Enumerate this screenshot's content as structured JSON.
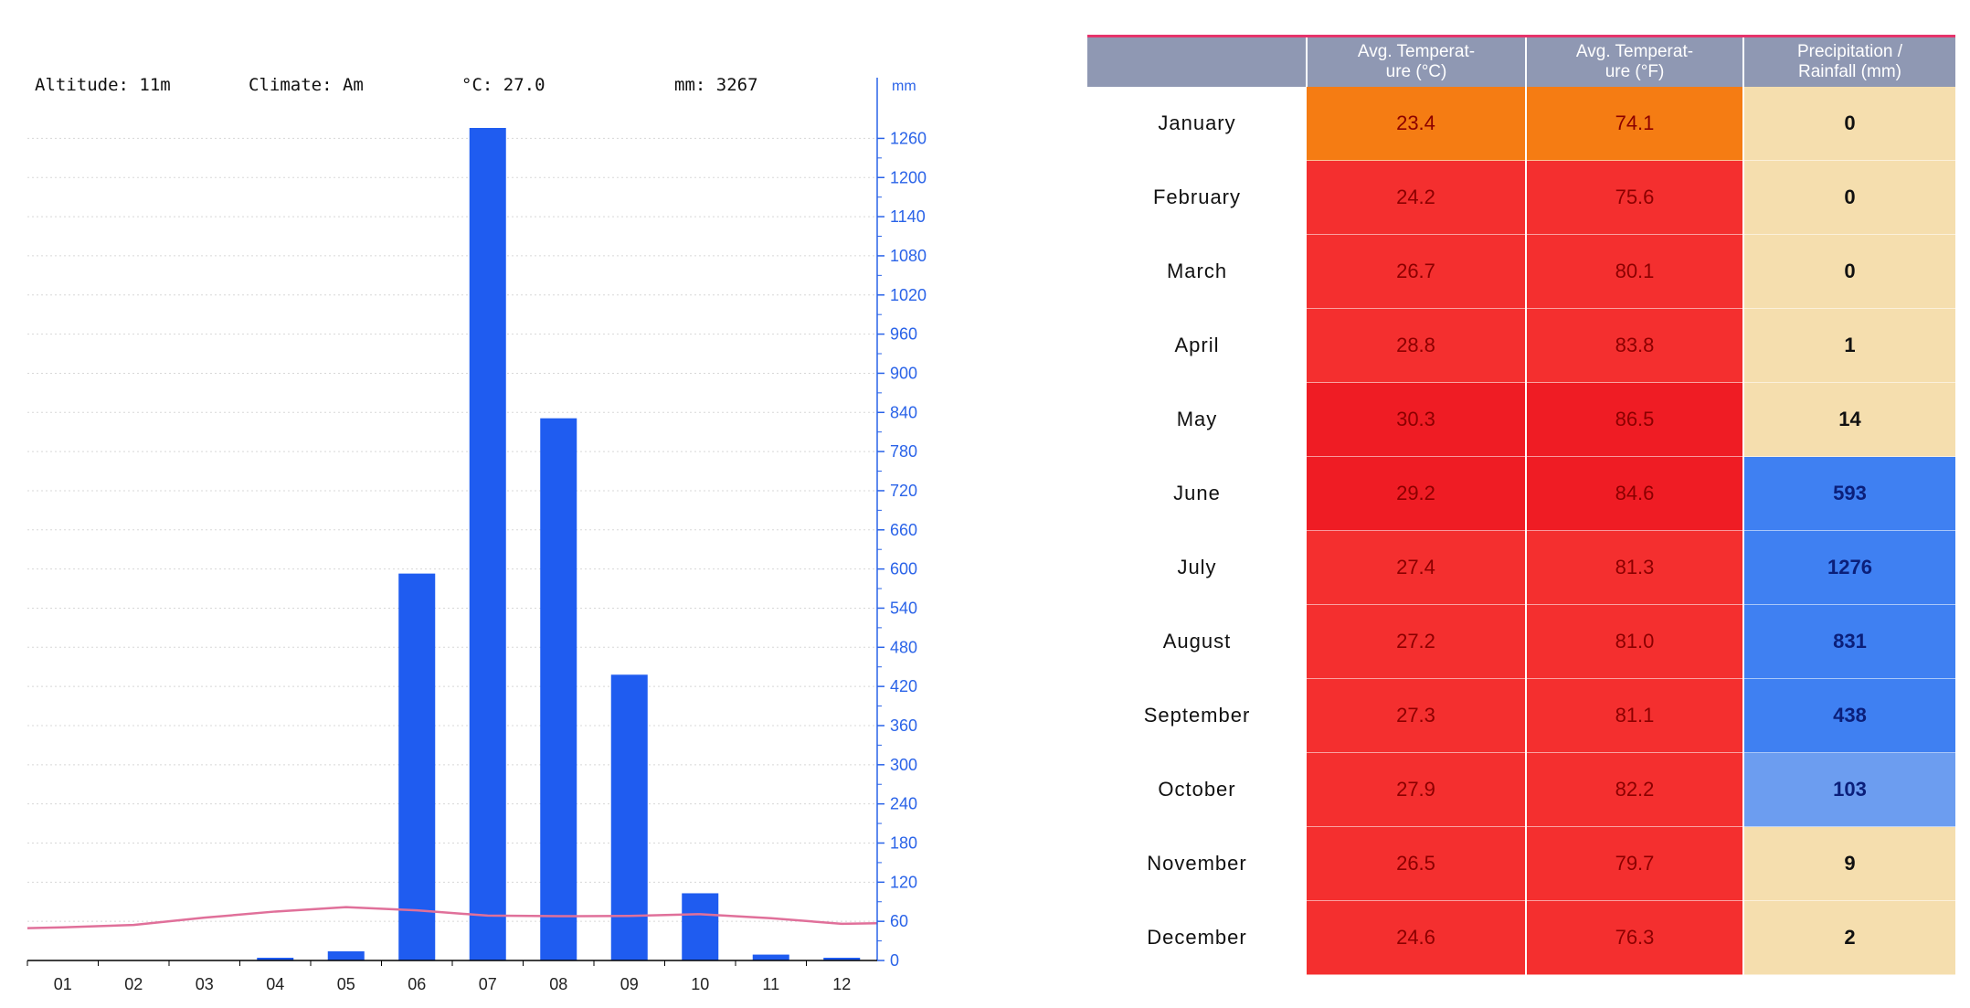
{
  "chart_data": [
    {
      "type": "bar",
      "header": {
        "altitude": "Altitude: 11m",
        "climate": "Climate: Am",
        "temp": "°C: 27.0",
        "precip": "mm: 3267"
      },
      "right_axis_unit": "mm",
      "categories": [
        "01",
        "02",
        "03",
        "04",
        "05",
        "06",
        "07",
        "08",
        "09",
        "10",
        "11",
        "12"
      ],
      "values": [
        0,
        0,
        0,
        1,
        14,
        593,
        1276,
        831,
        438,
        103,
        9,
        2
      ],
      "ylim": [
        0,
        1290
      ],
      "yticks": [
        0,
        60,
        120,
        180,
        240,
        300,
        360,
        420,
        480,
        540,
        600,
        660,
        720,
        780,
        840,
        900,
        960,
        1020,
        1080,
        1140,
        1200,
        1260
      ],
      "temperature_line": [
        23.4,
        24.2,
        26.7,
        28.8,
        30.3,
        29.2,
        27.4,
        27.2,
        27.3,
        27.9,
        26.5,
        24.6
      ],
      "bar_color": "#1f5cf0",
      "line_color": "#e0709a",
      "grid": true
    },
    {
      "type": "table",
      "columns": [
        "",
        "Avg. Temperat-\nure (°C)",
        "Avg. Temperat-\nure (°F)",
        "Precipitation /\nRainfall (mm)"
      ],
      "rows": [
        {
          "month": "January",
          "c": "23.4",
          "f": "74.1",
          "mm": "0"
        },
        {
          "month": "February",
          "c": "24.2",
          "f": "75.6",
          "mm": "0"
        },
        {
          "month": "March",
          "c": "26.7",
          "f": "80.1",
          "mm": "0"
        },
        {
          "month": "April",
          "c": "28.8",
          "f": "83.8",
          "mm": "1"
        },
        {
          "month": "May",
          "c": "30.3",
          "f": "86.5",
          "mm": "14"
        },
        {
          "month": "June",
          "c": "29.2",
          "f": "84.6",
          "mm": "593"
        },
        {
          "month": "July",
          "c": "27.4",
          "f": "81.3",
          "mm": "1276"
        },
        {
          "month": "August",
          "c": "27.2",
          "f": "81.0",
          "mm": "831"
        },
        {
          "month": "September",
          "c": "27.3",
          "f": "81.1",
          "mm": "438"
        },
        {
          "month": "October",
          "c": "27.9",
          "f": "82.2",
          "mm": "103"
        },
        {
          "month": "November",
          "c": "26.5",
          "f": "79.7",
          "mm": "9"
        },
        {
          "month": "December",
          "c": "24.6",
          "f": "76.3",
          "mm": "2"
        }
      ],
      "colors": {
        "temp_orange": "#f57c13",
        "temp_red": "#f42f2f",
        "temp_dark_red": "#ef1c24",
        "precip_dry": "#f5deae",
        "precip_wet": "#3f80f2",
        "precip_mid": "#6c9df0"
      }
    }
  ]
}
